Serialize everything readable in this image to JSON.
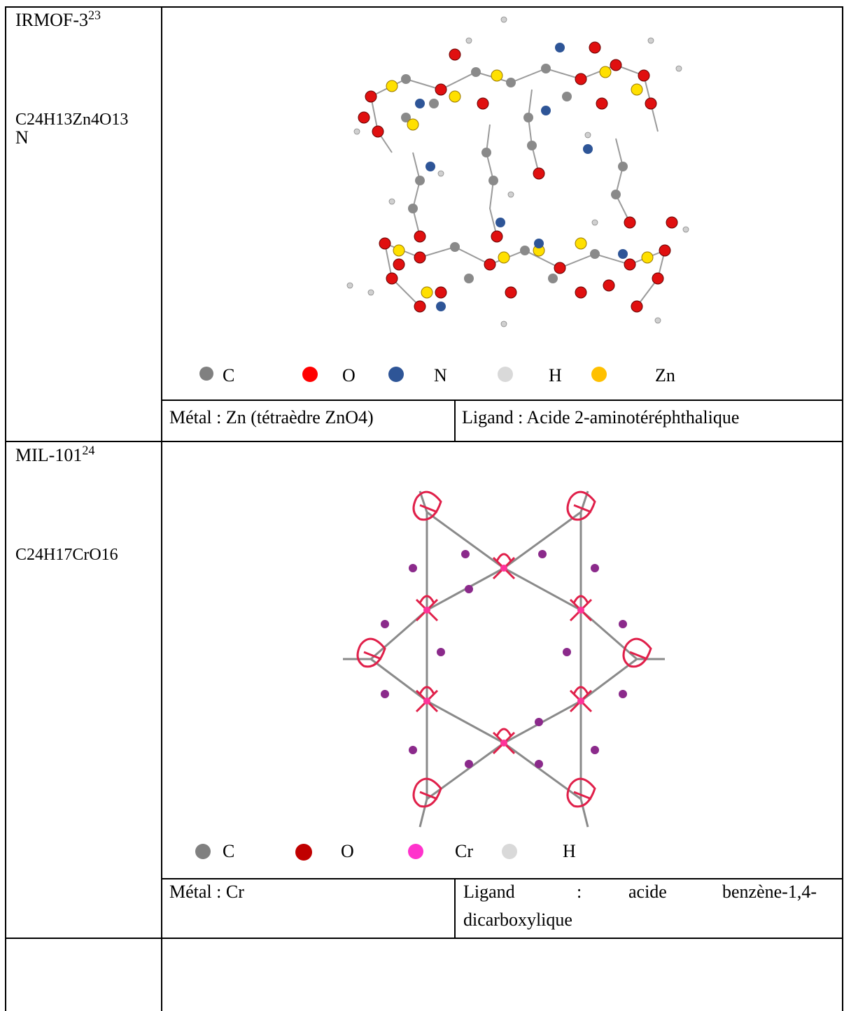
{
  "rows": [
    {
      "name": "IRMOF-3",
      "ref": "23",
      "formula_line1": "C24H13Zn4O13",
      "formula_line2": "N",
      "legend": [
        {
          "label": "C",
          "color": "#808080"
        },
        {
          "label": "O",
          "color": "#ff0000"
        },
        {
          "label": "N",
          "color": "#2e5597"
        },
        {
          "label": "H",
          "color": "#d9d9d9"
        },
        {
          "label": "Zn",
          "color": "#ffc000"
        }
      ],
      "metal": "Métal : Zn (tétraèdre ZnO4)",
      "ligand": "Ligand : Acide 2-aminotéréphthalique"
    },
    {
      "name": "MIL-101",
      "ref": "24",
      "formula": "C24H17CrO16",
      "legend": [
        {
          "label": "C",
          "color": "#808080"
        },
        {
          "label": "O",
          "color": "#c00000"
        },
        {
          "label": "Cr",
          "color": "#ff33cc"
        },
        {
          "label": "H",
          "color": "#d9d9d9"
        }
      ],
      "metal": "Métal : Cr",
      "ligand_words": [
        "Ligand",
        ":",
        "acide",
        "benzène-1,4-"
      ],
      "ligand_line2": "dicarboxylique"
    }
  ]
}
